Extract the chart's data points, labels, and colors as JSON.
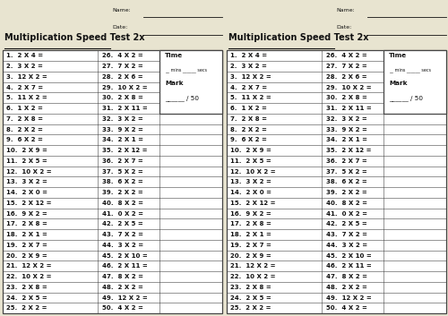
{
  "title": "Multiplication Speed Test 2x",
  "bg_color": "#e8e4d0",
  "questions_col1": [
    "1.  2 X 4 =",
    "2.  3 X 2 =",
    "3.  12 X 2 =",
    "4.  2 X 7 =",
    "5.  11 X 2 =",
    "6.  1 X 2 =",
    "7.  2 X 8 =",
    "8.  2 X 2 =",
    "9.  6 X 2 =",
    "10.  2 X 9 =",
    "11.  2 X 5 =",
    "12.  10 X 2 =",
    "13.  3 X 2 =",
    "14.  2 X 0 =",
    "15.  2 X 12 =",
    "16.  9 X 2 =",
    "17.  2 X 8 =",
    "18.  2 X 1 =",
    "19.  2 X 7 =",
    "20.  2 X 9 =",
    "21.  12 X 2 =",
    "22.  10 X 2 =",
    "23.  2 X 8 =",
    "24.  2 X 5 =",
    "25.  2 X 2 ="
  ],
  "questions_col2": [
    "26.  4 X 2 =",
    "27.  7 X 2 =",
    "28.  2 X 6 =",
    "29.  10 X 2 =",
    "30.  2 X 8 =",
    "31.  2 X 11 =",
    "32.  3 X 2 =",
    "33.  9 X 2 =",
    "34.  2 X 1 =",
    "35.  2 X 12 =",
    "36.  2 X 7 =",
    "37.  5 X 2 =",
    "38.  6 X 2 =",
    "39.  2 X 2 =",
    "40.  8 X 2 =",
    "41.  0 X 2 =",
    "42.  2 X 5 =",
    "43.  7 X 2 =",
    "44.  3 X 2 =",
    "45.  2 X 10 =",
    "46.  2 X 11 =",
    "47.  8 X 2 =",
    "48.  2 X 2 =",
    "49.  12 X 2 =",
    "50.  4 X 2 ="
  ],
  "name_label": "Name:",
  "date_label": "Date:",
  "time_label": "Time",
  "mins_label": "__ mins ______ secs",
  "mark_label": "Mark",
  "score_label": "______ / 50",
  "text_color": "#111111",
  "table_border_color": "#444444",
  "font_size_title": 7.0,
  "font_size_questions": 5.0,
  "font_size_box": 5.2,
  "font_size_header": 4.5
}
